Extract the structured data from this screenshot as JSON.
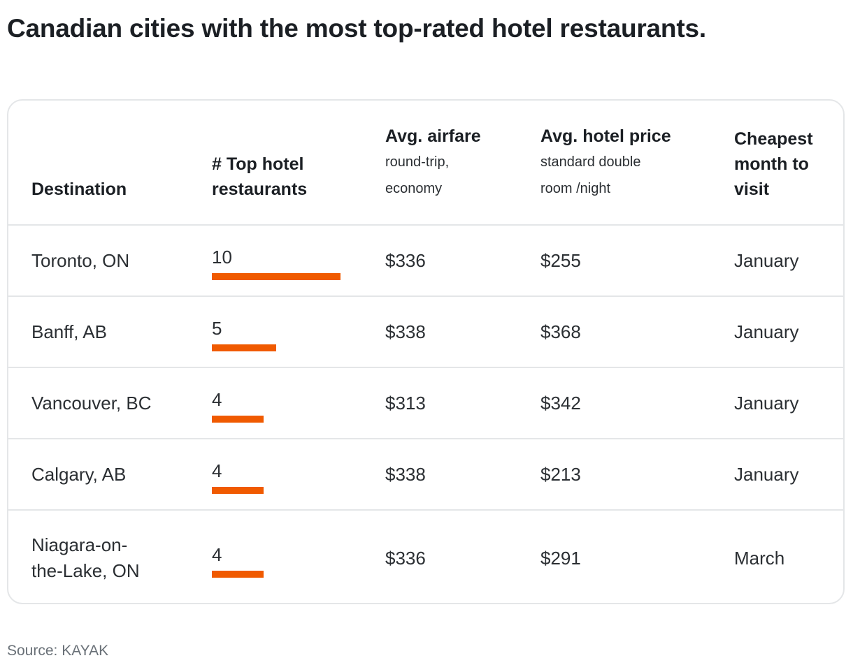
{
  "title": "Canadian cities with the most top-rated hotel restaurants.",
  "source": "Source: KAYAK",
  "colors": {
    "accent": "#f05a00",
    "border": "#e4e6e8",
    "text": "#2b2f33",
    "muted": "#697077"
  },
  "table": {
    "headers": {
      "destination": "Destination",
      "count": "# Top hotel restaurants",
      "airfare": "Avg. airfare",
      "airfare_sub": "round-trip, economy",
      "hotel": "Avg. hotel price",
      "hotel_sub": "standard double room /night",
      "month": "Cheapest month to visit"
    },
    "rows": [
      {
        "destination": "Toronto, ON",
        "count": "10",
        "airfare": "$336",
        "hotel": "$255",
        "month": "January"
      },
      {
        "destination": "Banff, AB",
        "count": "5",
        "airfare": "$338",
        "hotel": "$368",
        "month": "January"
      },
      {
        "destination": "Vancouver, BC",
        "count": "4",
        "airfare": "$313",
        "hotel": "$342",
        "month": "January"
      },
      {
        "destination": "Calgary, AB",
        "count": "4",
        "airfare": "$338",
        "hotel": "$213",
        "month": "January"
      },
      {
        "destination": "Niagara-on-the-Lake, ON",
        "count": "4",
        "airfare": "$336",
        "hotel": "$291",
        "month": "March"
      }
    ]
  },
  "chart_data": {
    "type": "table",
    "title": "Canadian cities with the most top-rated hotel restaurants.",
    "columns": [
      "Destination",
      "# Top hotel restaurants",
      "Avg. airfare (round-trip, economy)",
      "Avg. hotel price (standard double room /night)",
      "Cheapest month to visit"
    ],
    "categories": [
      "Toronto, ON",
      "Banff, AB",
      "Vancouver, BC",
      "Calgary, AB",
      "Niagara-on-the-Lake, ON"
    ],
    "values": [
      10,
      5,
      4,
      4,
      4
    ],
    "airfare": [
      336,
      338,
      313,
      338,
      336
    ],
    "hotel_price": [
      255,
      368,
      342,
      213,
      291
    ],
    "cheapest_month": [
      "January",
      "January",
      "January",
      "January",
      "March"
    ],
    "bar_max": 10
  }
}
